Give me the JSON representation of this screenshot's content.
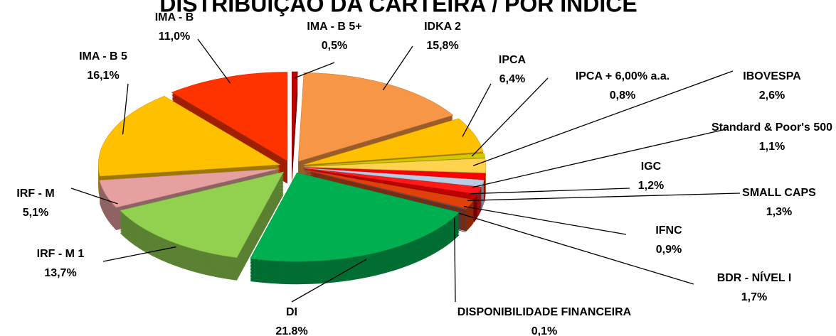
{
  "chart_data": {
    "type": "pie",
    "title": "DISTRIBUIÇÃO DA CARTEIRA / POR ÍNDICE",
    "categories": [
      "IMA - B 5+",
      "IDKA 2",
      "IPCA",
      "IPCA + 6,00% a.a.",
      "IBOVESPA",
      "Standard & Poor's 500",
      "IGC",
      "SMALL CAPS",
      "IFNC",
      "BDR - NÍVEL I",
      "DISPONIBILIDADE FINANCEIRA",
      "DI",
      "IRF - M 1",
      "IRF - M",
      "IMA - B 5",
      "IMA - B"
    ],
    "values": [
      0.5,
      15.8,
      6.4,
      0.8,
      2.6,
      1.1,
      1.2,
      1.3,
      0.9,
      1.7,
      0.1,
      21.8,
      13.7,
      5.1,
      16.1,
      11.0
    ],
    "value_labels": [
      "0,5%",
      "15,8%",
      "6,4%",
      "0,8%",
      "2,6%",
      "1,1%",
      "1,2%",
      "1,3%",
      "0,9%",
      "1,7%",
      "0,1%",
      "21.8%",
      "13,7%",
      "5,1%",
      "16,1%",
      "11,0%"
    ],
    "colors": [
      "#c00000",
      "#f79646",
      "#ffc000",
      "#d4c800",
      "#ffd34d",
      "#ff0000",
      "#b8cce4",
      "#ff1a1a",
      "#c00000",
      "#e0400a",
      "#5f5f73",
      "#00b050",
      "#92d050",
      "#e6a0a0",
      "#ffc000",
      "#ff3300"
    ]
  }
}
